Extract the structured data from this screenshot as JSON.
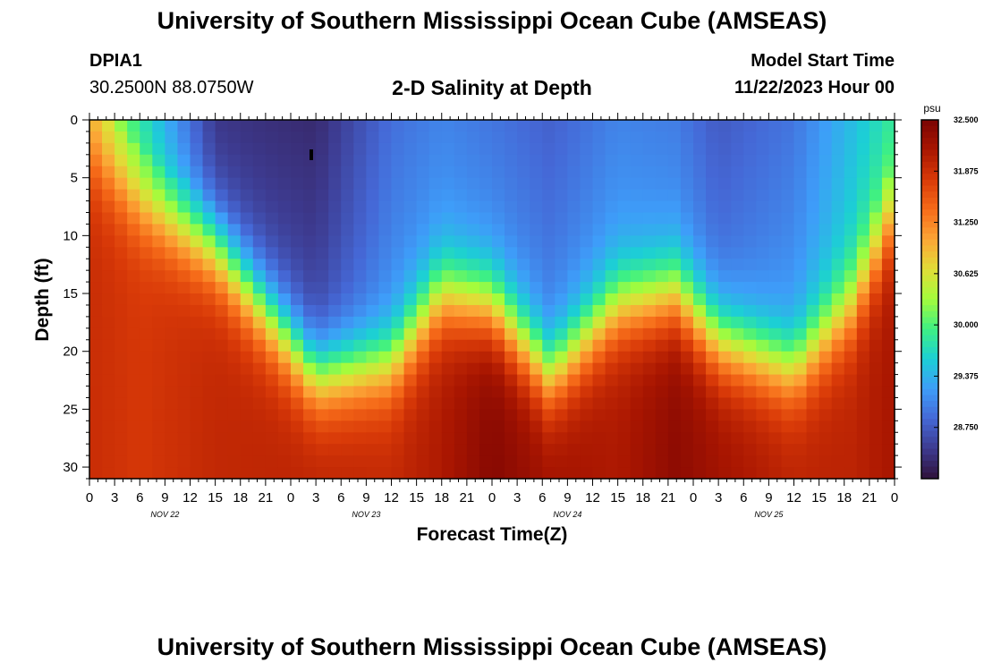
{
  "page": {
    "title": "University of Southern Mississippi Ocean Cube (AMSEAS)",
    "footer_title": "University of Southern Mississippi Ocean Cube (AMSEAS)",
    "station": "DPIA1",
    "location": "30.2500N  88.0750W",
    "chart_title": "2-D Salinity at Depth",
    "model_start_label": "Model Start Time",
    "model_start_value": "11/22/2023 Hour 00"
  },
  "chart_data": {
    "type": "heatmap",
    "title": "2-D Salinity at Depth",
    "xlabel": "Forecast Time(Z)",
    "ylabel": "Depth (ft)",
    "x_range_hours": [
      0,
      96
    ],
    "x_step_hours": 1.5,
    "x_tick_labels": [
      "0",
      "3",
      "6",
      "9",
      "12",
      "15",
      "18",
      "21",
      "0",
      "3",
      "6",
      "9",
      "12",
      "15",
      "18",
      "21",
      "0",
      "3",
      "6",
      "9",
      "12",
      "15",
      "18",
      "21",
      "0",
      "3",
      "6",
      "9",
      "12",
      "15",
      "18",
      "21",
      "0"
    ],
    "date_labels": [
      "NOV 22",
      "NOV 23",
      "NOV 24",
      "NOV 25"
    ],
    "y_range_ft": [
      0,
      31
    ],
    "y_step_ft": 1,
    "y_tick_labels": [
      "0",
      "5",
      "10",
      "15",
      "20",
      "25",
      "30"
    ],
    "colorbar": {
      "unit": "psu",
      "min": 28.125,
      "max": 32.5,
      "tick_labels": [
        "32.500",
        "31.875",
        "31.250",
        "30.625",
        "30.000",
        "29.375",
        "28.750"
      ]
    },
    "colors": {
      "scale": [
        "#30123b",
        "#3d3a8f",
        "#4568d6",
        "#3e9df9",
        "#1ccfd5",
        "#3ef083",
        "#a4fc3c",
        "#e1dd37",
        "#fca536",
        "#f66b19",
        "#d93a08",
        "#a91601",
        "#7a0403"
      ]
    },
    "profile_hours": [
      0,
      6,
      15,
      27,
      36,
      42,
      48,
      55,
      63,
      70,
      75,
      84,
      91,
      96
    ],
    "halocline_depth_ft": [
      3.0,
      7.0,
      11.0,
      22.0,
      21.0,
      15.0,
      16.0,
      22.0,
      16.0,
      15.0,
      19.0,
      21.5,
      16.0,
      8.0
    ],
    "surface_psu": [
      30.8,
      29.9,
      28.6,
      28.5,
      29.05,
      29.2,
      29.1,
      28.95,
      29.2,
      29.15,
      28.9,
      29.1,
      29.6,
      30.0
    ],
    "bottom_psu": [
      31.9,
      31.8,
      31.95,
      32.0,
      31.95,
      32.1,
      32.4,
      32.2,
      32.1,
      32.35,
      32.2,
      32.0,
      32.0,
      32.15
    ]
  }
}
